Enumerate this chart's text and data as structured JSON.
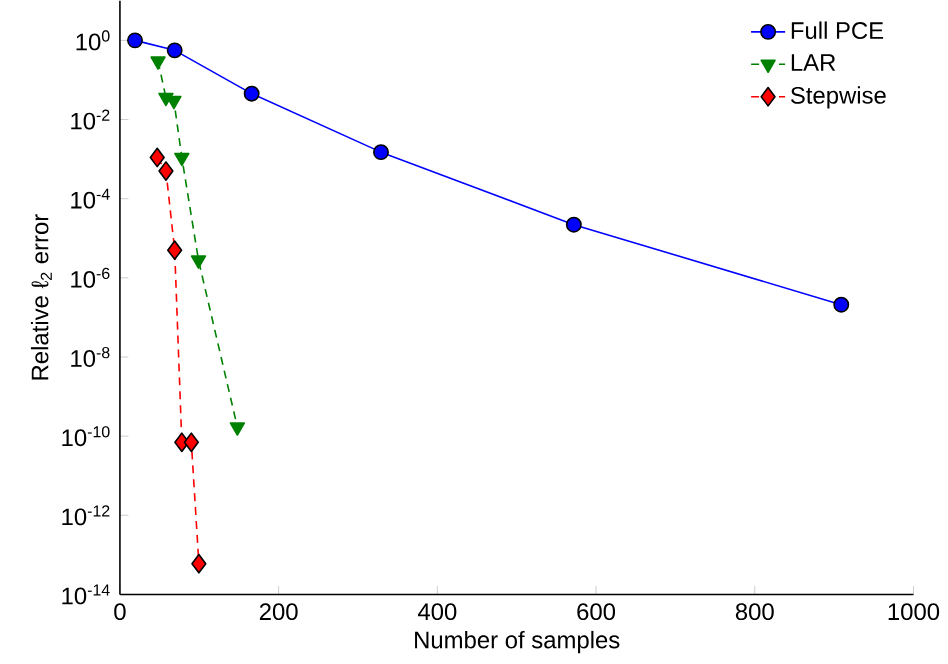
{
  "chart_data": {
    "type": "line",
    "xlabel": "Number of samples",
    "ylabel": "Relative ℓ$_{2}$ error",
    "log": "y",
    "grid": false,
    "legend": "top right",
    "xlim": [
      0,
      1000
    ],
    "ylim": [
      1e-14,
      10
    ],
    "xticks": [
      0,
      200,
      400,
      600,
      800,
      1000
    ],
    "yticks": [
      {
        "value": 1e-14,
        "label": "10$^{-14}$"
      },
      {
        "value": 1e-12,
        "label": "10$^{-12}$"
      },
      {
        "value": 1e-10,
        "label": "10$^{-10}$"
      },
      {
        "value": 1e-08,
        "label": "10$^{-8}$"
      },
      {
        "value": 1e-06,
        "label": "10$^{-6}$"
      },
      {
        "value": 0.0001,
        "label": "10$^{-4}$"
      },
      {
        "value": 0.01,
        "label": "10$^{-2}$"
      },
      {
        "value": 1,
        "label": "10$^{0}$"
      }
    ],
    "series": [
      {
        "name": "Full PCE",
        "color": "#0000ff",
        "marker": "circle",
        "line_style": "solid",
        "x": [
          19,
          69,
          166,
          329,
          572,
          909
        ],
        "values": [
          1.0,
          0.56,
          0.045,
          0.0015,
          2.2e-05,
          2.1e-07
        ]
      },
      {
        "name": "LAR",
        "color": "#008000",
        "marker": "triangle",
        "line_style": "dashed",
        "x": [
          48,
          58,
          68,
          78,
          99,
          148
        ],
        "values": [
          0.3,
          0.036,
          0.03,
          0.0011,
          2.8e-06,
          1.7e-10
        ]
      },
      {
        "name": "Stepwise",
        "color": "#ff0000",
        "marker": "diamond",
        "line_style": "dashed",
        "x": [
          47,
          58,
          69,
          78,
          90,
          99.5
        ],
        "values": [
          0.0011,
          0.0005,
          5e-06,
          7e-11,
          7e-11,
          6e-14
        ]
      }
    ]
  }
}
